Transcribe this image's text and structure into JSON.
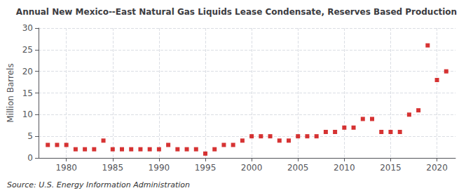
{
  "chart_data": {
    "type": "scatter",
    "title": "Annual New Mexico--East Natural Gas Liquids Lease Condensate, Reserves Based Production",
    "ylabel": "Million Barrels",
    "annotations": [
      "Source: U.S. Energy Information Administration"
    ],
    "x": [
      1978,
      1979,
      1980,
      1981,
      1982,
      1983,
      1984,
      1985,
      1986,
      1987,
      1988,
      1989,
      1990,
      1991,
      1992,
      1993,
      1994,
      1995,
      1996,
      1997,
      1998,
      1999,
      2000,
      2001,
      2002,
      2003,
      2004,
      2005,
      2006,
      2007,
      2008,
      2009,
      2010,
      2011,
      2012,
      2013,
      2014,
      2015,
      2016,
      2017,
      2018,
      2019,
      2020,
      2021
    ],
    "values": [
      3.0,
      3.0,
      3.0,
      2.0,
      2.0,
      2.0,
      4.0,
      2.0,
      2.0,
      2.0,
      2.0,
      2.0,
      2.0,
      3.0,
      2.0,
      2.0,
      2.0,
      1.0,
      2.0,
      3.0,
      3.0,
      4.0,
      5.0,
      5.0,
      5.0,
      4.0,
      4.0,
      5.0,
      5.0,
      5.0,
      6.0,
      6.0,
      7.0,
      7.0,
      9.0,
      9.0,
      6.0,
      6.0,
      6.0,
      10.0,
      11.0,
      26.0,
      18.0,
      20.0
    ],
    "color": "#cc0000",
    "marker": "square",
    "xlim": [
      1977,
      2022
    ],
    "xticks": [
      1980,
      1985,
      1990,
      1995,
      2000,
      2005,
      2010,
      2015,
      2020
    ],
    "ylim": [
      0,
      30
    ],
    "yticks": [
      0,
      5,
      10,
      15,
      20,
      25,
      30
    ],
    "grid": true
  }
}
